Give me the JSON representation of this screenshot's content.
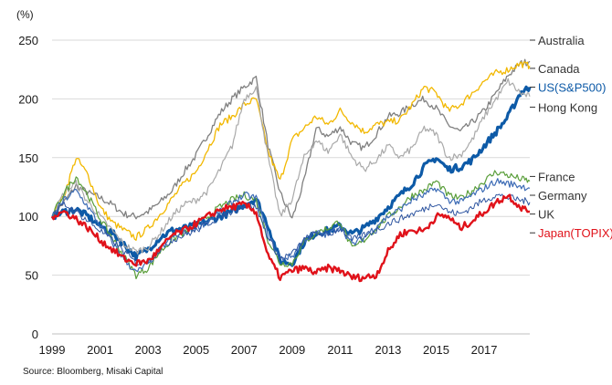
{
  "chart_data": {
    "type": "line",
    "unit_label": "(%)",
    "xlabel": "",
    "ylabel": "",
    "xlim": [
      1999.0,
      2018.9
    ],
    "ylim": [
      0,
      250
    ],
    "x_ticks": [
      "1999",
      "2001",
      "2003",
      "2005",
      "2007",
      "2009",
      "2011",
      "2013",
      "2015",
      "2017"
    ],
    "y_ticks": [
      0,
      50,
      100,
      150,
      200,
      250
    ],
    "grid": "horizontal",
    "legend_position": "right",
    "source": "Source: Bloomberg, Misaki Capital",
    "x": [
      1999.0,
      1999.5,
      2000.0,
      2000.5,
      2001.0,
      2001.5,
      2002.0,
      2002.5,
      2003.0,
      2003.5,
      2004.0,
      2004.5,
      2005.0,
      2005.5,
      2006.0,
      2006.5,
      2007.0,
      2007.5,
      2008.0,
      2008.5,
      2009.0,
      2009.5,
      2010.0,
      2010.5,
      2011.0,
      2011.5,
      2012.0,
      2012.5,
      2013.0,
      2013.5,
      2014.0,
      2014.5,
      2015.0,
      2015.5,
      2016.0,
      2016.5,
      2017.0,
      2017.5,
      2018.0,
      2018.5,
      2018.9
    ],
    "series": [
      {
        "name": "Australia",
        "color": "#808080",
        "width": 1.3,
        "values": [
          100,
          112,
          126,
          120,
          116,
          110,
          102,
          100,
          104,
          112,
          122,
          138,
          152,
          170,
          188,
          200,
          210,
          218,
          160,
          120,
          98,
          130,
          175,
          168,
          176,
          162,
          158,
          170,
          185,
          188,
          195,
          200,
          192,
          178,
          172,
          180,
          190,
          205,
          220,
          230,
          232
        ]
      },
      {
        "name": "Canada",
        "color": "#f2b800",
        "width": 1.3,
        "values": [
          100,
          118,
          150,
          135,
          108,
          95,
          88,
          82,
          90,
          102,
          115,
          128,
          138,
          158,
          178,
          185,
          195,
          200,
          155,
          130,
          165,
          175,
          185,
          178,
          190,
          180,
          172,
          178,
          180,
          182,
          195,
          210,
          205,
          190,
          195,
          205,
          215,
          222,
          225,
          230,
          228
        ]
      },
      {
        "name": "US(S&P500)",
        "color": "#0d5aa7",
        "width": 3.2,
        "values": [
          100,
          104,
          106,
          100,
          92,
          86,
          76,
          66,
          72,
          82,
          88,
          90,
          92,
          96,
          100,
          104,
          110,
          115,
          92,
          62,
          60,
          78,
          86,
          88,
          92,
          85,
          90,
          98,
          108,
          118,
          128,
          142,
          150,
          140,
          142,
          148,
          160,
          172,
          185,
          205,
          210
        ]
      },
      {
        "name": "Hong Kong",
        "color": "#a9a9a9",
        "width": 1.2,
        "values": [
          100,
          120,
          128,
          112,
          100,
          88,
          76,
          70,
          74,
          86,
          100,
          110,
          114,
          122,
          140,
          160,
          200,
          210,
          150,
          100,
          115,
          150,
          165,
          155,
          170,
          150,
          140,
          148,
          160,
          150,
          158,
          175,
          170,
          150,
          152,
          165,
          185,
          200,
          215,
          205,
          202
        ]
      },
      {
        "name": "France",
        "color": "#5a9e3a",
        "width": 1.2,
        "values": [
          100,
          120,
          134,
          118,
          98,
          82,
          66,
          50,
          56,
          70,
          80,
          86,
          92,
          100,
          108,
          114,
          118,
          114,
          80,
          60,
          60,
          78,
          86,
          90,
          96,
          72,
          80,
          90,
          100,
          108,
          118,
          122,
          130,
          118,
          115,
          122,
          130,
          138,
          135,
          132,
          130
        ]
      },
      {
        "name": "Germany",
        "color": "#3c6bb5",
        "width": 1.2,
        "values": [
          100,
          114,
          122,
          108,
          92,
          78,
          64,
          52,
          60,
          72,
          82,
          86,
          90,
          96,
          104,
          112,
          118,
          116,
          84,
          64,
          66,
          80,
          86,
          84,
          92,
          76,
          82,
          92,
          100,
          106,
          114,
          118,
          124,
          114,
          112,
          118,
          124,
          130,
          128,
          126,
          124
        ]
      },
      {
        "name": "UK",
        "color": "#2e55a0",
        "width": 1.0,
        "values": [
          100,
          110,
          104,
          96,
          88,
          80,
          70,
          60,
          62,
          72,
          80,
          84,
          88,
          94,
          100,
          104,
          110,
          108,
          82,
          64,
          68,
          80,
          86,
          84,
          90,
          80,
          84,
          88,
          94,
          98,
          102,
          106,
          112,
          104,
          102,
          108,
          114,
          118,
          116,
          114,
          112
        ]
      },
      {
        "name": "Japan(TOPIX)",
        "color": "#e0121a",
        "width": 2.4,
        "values": [
          100,
          104,
          98,
          90,
          80,
          72,
          64,
          60,
          62,
          72,
          84,
          88,
          94,
          100,
          106,
          108,
          110,
          104,
          66,
          48,
          54,
          56,
          52,
          56,
          54,
          48,
          48,
          50,
          70,
          85,
          88,
          88,
          100,
          100,
          90,
          96,
          104,
          112,
          118,
          108,
          104
        ]
      }
    ],
    "legend": [
      {
        "label": "Australia",
        "color": "#333333",
        "y": 250
      },
      {
        "label": "Canada",
        "color": "#333333",
        "y": 226
      },
      {
        "label": "US(S&P500)",
        "color": "#0d5aa7",
        "y": 210
      },
      {
        "label": "Hong Kong",
        "color": "#333333",
        "y": 193
      },
      {
        "label": "France",
        "color": "#333333",
        "y": 134
      },
      {
        "label": "Germany",
        "color": "#333333",
        "y": 118
      },
      {
        "label": "UK",
        "color": "#333333",
        "y": 102
      },
      {
        "label": "Japan(TOPIX)",
        "color": "#e0121a",
        "y": 86
      }
    ]
  }
}
